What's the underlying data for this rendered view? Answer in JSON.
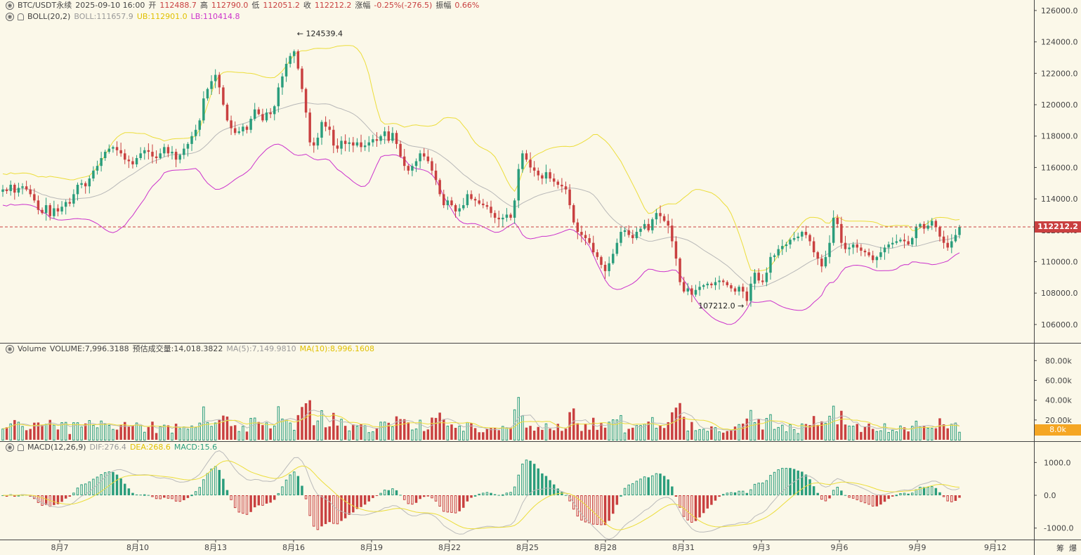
{
  "header": {
    "symbol": "BTC/USDT永续",
    "datetime": "2025-09-10 16:00",
    "open_label": "开",
    "open": "112488.7",
    "high_label": "高",
    "high": "112790.0",
    "low_label": "低",
    "low": "112051.2",
    "close_label": "收",
    "close": "112212.2",
    "change_label": "涨幅",
    "change": "-0.25%(-276.5)",
    "amp_label": "振幅",
    "amp": "0.66%"
  },
  "boll": {
    "label": "BOLL(20,2)",
    "boll": "BOLL:111657.9",
    "ub": "UB:112901.0",
    "lb": "LB:110414.8"
  },
  "volume": {
    "label": "Volume",
    "vol": "VOLUME:7,996.3188",
    "est": "预估成交量:14,018.3822",
    "ma5": "MA(5):7,149.9810",
    "ma10": "MA(10):8,996.1608",
    "tag": "8.0k"
  },
  "macd": {
    "label": "MACD(12,26,9)",
    "dif": "DIF:276.4",
    "dea": "DEA:268.6",
    "macd": "MACD:15.6"
  },
  "colors": {
    "up": "#2a9d7c",
    "down": "#c94040",
    "boll_mid": "#b8b8b8",
    "ub": "#ecdd3a",
    "lb": "#cc33cc",
    "bg": "#fbf8e9"
  },
  "icons": {
    "eye": "eye-icon",
    "bell": "bell-icon"
  },
  "footer": {
    "corner_a": "筹",
    "corner_b": "爆"
  },
  "chart_data": {
    "type": "candlestick",
    "price_axis": {
      "ticks": [
        "126000.0",
        "124000.0",
        "122000.0",
        "120000.0",
        "118000.0",
        "116000.0",
        "114000.0",
        "112000.0",
        "110000.0",
        "108000.0",
        "106000.0"
      ],
      "range": [
        105100,
        126400
      ]
    },
    "current_price": "112212.2",
    "max_annotation": "124539.4",
    "min_annotation": "107212.0",
    "volume_axis": {
      "ticks": [
        "80.00k",
        "60.00k",
        "40.00k",
        "20.00k"
      ],
      "range": [
        0,
        88000
      ]
    },
    "macd_axis": {
      "ticks": [
        "1000.0",
        "0.0",
        "-1000.0"
      ],
      "range": [
        -1350,
        1350
      ]
    },
    "x_labels": [
      "8月7",
      "8月10",
      "8月13",
      "8月16",
      "8月19",
      "8月22",
      "8月25",
      "8月28",
      "8月31",
      "9月3",
      "9月6",
      "9月9",
      "9月12"
    ],
    "closes": [
      114600,
      114500,
      114900,
      114400,
      114700,
      114800,
      114600,
      114300,
      113900,
      113300,
      113100,
      113600,
      112900,
      113400,
      113200,
      113500,
      113800,
      113700,
      114300,
      114900,
      115000,
      114800,
      115300,
      115800,
      116100,
      116600,
      117000,
      117200,
      117300,
      117100,
      116900,
      116500,
      116400,
      116200,
      116600,
      116900,
      117100,
      117000,
      116700,
      116600,
      116900,
      117300,
      116900,
      117000,
      116500,
      116800,
      117200,
      117500,
      118000,
      118400,
      119000,
      120400,
      121000,
      121500,
      121900,
      121100,
      120000,
      119000,
      118500,
      118200,
      118300,
      118600,
      118400,
      119100,
      119700,
      119400,
      119000,
      119500,
      119400,
      119900,
      121100,
      121800,
      122600,
      123100,
      123400,
      122300,
      121000,
      119500,
      117600,
      117400,
      117900,
      118900,
      118600,
      118400,
      117400,
      117200,
      117700,
      117500,
      117600,
      117400,
      117600,
      117300,
      117400,
      117600,
      117800,
      117700,
      118000,
      118300,
      117700,
      118200,
      117500,
      116700,
      116100,
      115800,
      116100,
      116400,
      116900,
      116700,
      116400,
      115800,
      115200,
      114300,
      113600,
      113900,
      113600,
      113200,
      113400,
      113600,
      114300,
      114000,
      113900,
      113700,
      113600,
      113500,
      113100,
      112800,
      112700,
      112800,
      113000,
      112800,
      113900,
      115900,
      116900,
      116500,
      116000,
      115800,
      115500,
      115300,
      115700,
      115300,
      115100,
      114900,
      114800,
      114600,
      113600,
      112500,
      111900,
      111700,
      111500,
      111200,
      110600,
      110300,
      109800,
      109400,
      109900,
      110500,
      111200,
      111900,
      112000,
      111700,
      111500,
      111900,
      112100,
      112400,
      112000,
      112700,
      113100,
      112900,
      112600,
      112300,
      111300,
      110200,
      108700,
      108100,
      108300,
      107900,
      108200,
      108400,
      108500,
      108600,
      108500,
      108700,
      108800,
      108700,
      108500,
      108300,
      108100,
      108400,
      108100,
      107500,
      108600,
      109300,
      108800,
      108700,
      109300,
      110300,
      110400,
      110800,
      111000,
      111100,
      111400,
      111500,
      111600,
      111900,
      111700,
      111300,
      110600,
      110200,
      109700,
      110300,
      111200,
      112800,
      112400,
      111200,
      110800,
      110900,
      111100,
      110900,
      110700,
      110600,
      110400,
      110100,
      110300,
      110600,
      110900,
      111100,
      111200,
      111300,
      111400,
      111300,
      111100,
      111500,
      112200,
      112400,
      112100,
      112300,
      112600,
      112200,
      111600,
      111200,
      110900,
      111300,
      111700,
      112212
    ]
  }
}
